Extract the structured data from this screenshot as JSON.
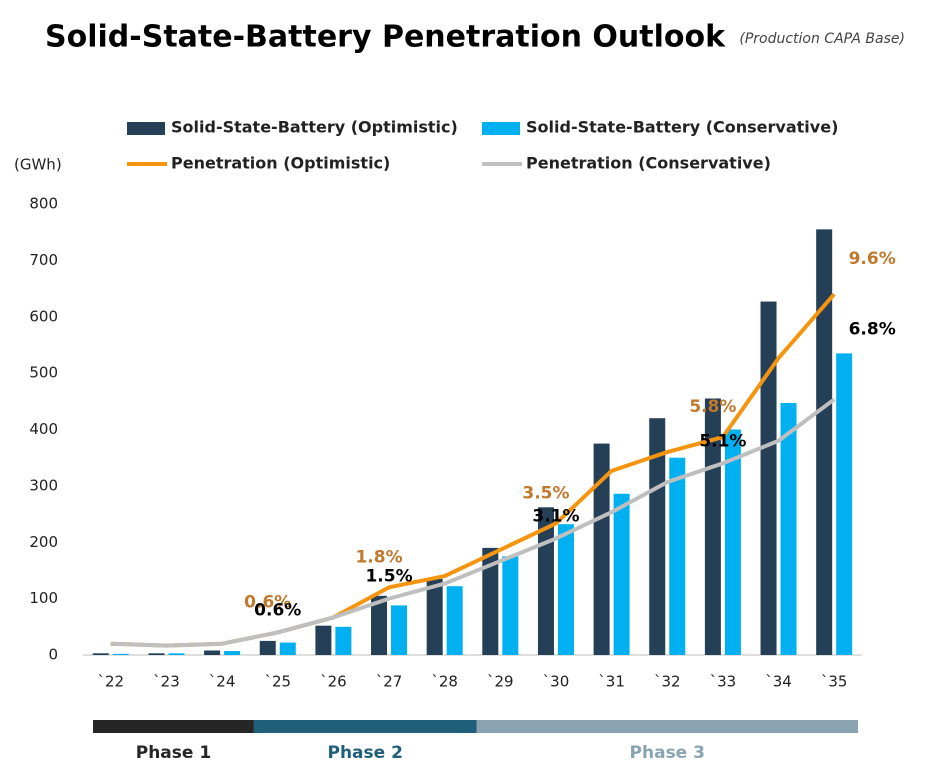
{
  "chart_data": {
    "type": "bar-line",
    "title": "Solid-State-Battery Penetration Outlook",
    "subtitle": "(Production CAPA Base)",
    "y_label": "(GWh)",
    "categories": [
      "`22",
      "`23",
      "`24",
      "`25",
      "`26",
      "`27",
      "`28",
      "`29",
      "`30",
      "`31",
      "`32",
      "`33",
      "`34",
      "`35"
    ],
    "ylim": [
      0,
      800
    ],
    "yticks": [
      0,
      100,
      200,
      300,
      400,
      500,
      600,
      700,
      800
    ],
    "y2lim": [
      0,
      12
    ],
    "grid": false,
    "series": [
      {
        "name": "Solid-State-Battery (Optimistic)",
        "kind": "bar",
        "color": "#243f56",
        "values": [
          3,
          3,
          8,
          25,
          52,
          105,
          135,
          190,
          262,
          375,
          420,
          455,
          627,
          755
        ]
      },
      {
        "name": "Solid-State-Battery (Conservative)",
        "kind": "bar",
        "color": "#00b0f0",
        "values": [
          2,
          3,
          7,
          22,
          50,
          88,
          122,
          175,
          232,
          286,
          350,
          400,
          447,
          535
        ]
      },
      {
        "name": "Penetration (Optimistic)",
        "kind": "line",
        "axis": "y2",
        "color": "#f5950f",
        "label_color": "#c0782a",
        "values": [
          0.3,
          0.25,
          0.3,
          0.6,
          1.0,
          1.8,
          2.1,
          2.8,
          3.5,
          4.9,
          5.4,
          5.8,
          7.9,
          9.6
        ],
        "value_labels": [
          null,
          null,
          null,
          "0.6%",
          null,
          "1.8%",
          null,
          null,
          "3.5%",
          null,
          null,
          "5.8%",
          null,
          "9.6%"
        ]
      },
      {
        "name": "Penetration (Conservative)",
        "kind": "line",
        "axis": "y2",
        "color": "#bfbfbf",
        "label_color": "#000000",
        "values": [
          0.3,
          0.25,
          0.3,
          0.6,
          1.0,
          1.5,
          1.9,
          2.5,
          3.1,
          3.8,
          4.6,
          5.1,
          5.7,
          6.8
        ],
        "value_labels": [
          null,
          null,
          null,
          "0.6%",
          null,
          "1.5%",
          null,
          null,
          "3.1%",
          null,
          null,
          "5.1%",
          null,
          "6.8%"
        ]
      }
    ],
    "phases": [
      {
        "label": "Phase 1",
        "color": "#262626",
        "span": 3
      },
      {
        "label": "Phase 2",
        "color": "#1f5f7a",
        "span": 4
      },
      {
        "label": "Phase 3",
        "color": "#8aa3b3",
        "span": 7
      }
    ]
  }
}
